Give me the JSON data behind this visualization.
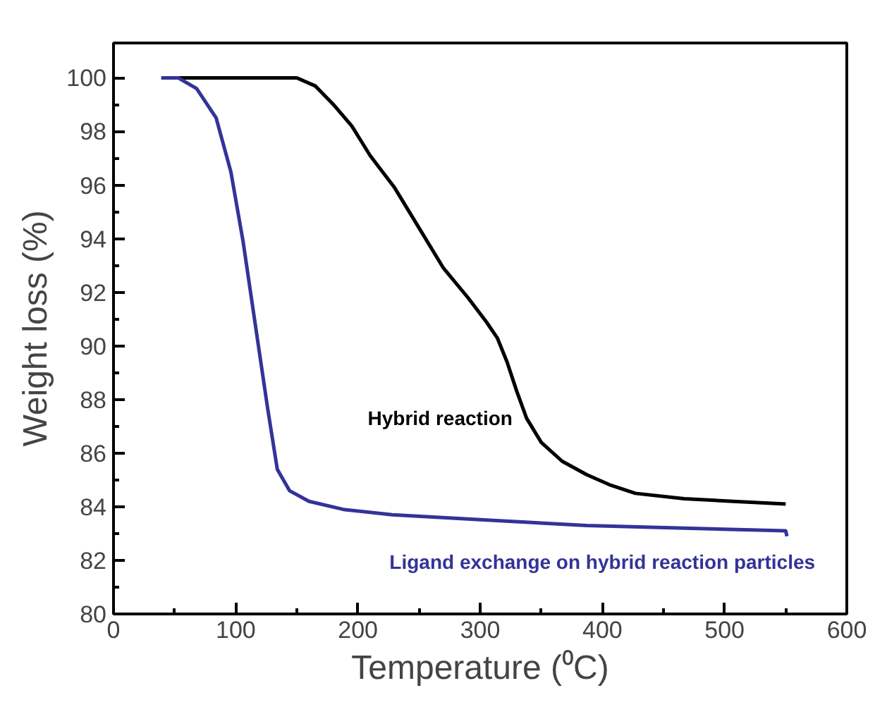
{
  "chart_data": {
    "type": "line",
    "xlabel": "Temperature (⁰C)",
    "ylabel": "Weight loss (%)",
    "xlim": [
      0,
      600
    ],
    "ylim": [
      80,
      101.3
    ],
    "xticks": [
      0,
      100,
      200,
      300,
      400,
      500,
      600
    ],
    "yticks": [
      80,
      82,
      84,
      86,
      88,
      90,
      92,
      94,
      96,
      98,
      100
    ],
    "grid": false,
    "marker": "none",
    "line_style": "solid",
    "series": [
      {
        "name": "Hybrid reaction",
        "color": "#000000",
        "x": [
          40,
          150,
          165,
          180,
          195,
          210,
          230,
          250,
          270,
          290,
          305,
          314,
          322,
          330,
          338,
          350,
          367,
          387,
          407,
          427,
          467,
          507,
          550
        ],
        "values": [
          100,
          100,
          99.7,
          99.0,
          98.2,
          97.1,
          95.9,
          94.4,
          92.9,
          91.8,
          90.9,
          90.3,
          89.4,
          88.3,
          87.3,
          86.4,
          85.7,
          85.2,
          84.8,
          84.5,
          84.3,
          84.2,
          84.1
        ]
      },
      {
        "name": "Ligand exchange on hybrid reaction particles",
        "color": "#333399",
        "x": [
          39,
          53,
          68,
          84,
          96,
          106,
          116,
          126,
          134,
          144,
          160,
          188,
          228,
          308,
          387,
          467,
          550,
          551
        ],
        "values": [
          100,
          100,
          99.6,
          98.5,
          96.5,
          93.9,
          90.8,
          87.7,
          85.4,
          84.6,
          84.2,
          83.9,
          83.7,
          83.5,
          83.3,
          83.2,
          83.1,
          82.9
        ]
      }
    ]
  }
}
